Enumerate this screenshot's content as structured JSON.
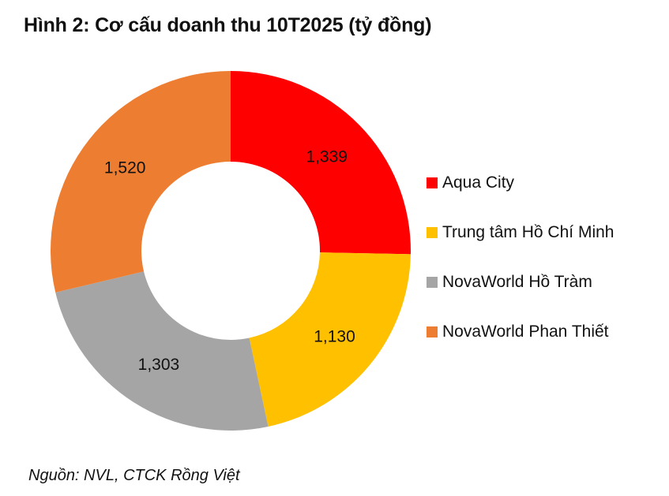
{
  "title": "Hình 2: Cơ cấu doanh thu 10T2025 (tỷ đồng)",
  "source": "Nguồn: NVL, CTCK Rồng Việt",
  "chart_data": {
    "type": "pie",
    "subtype": "donut",
    "title": "Hình 2: Cơ cấu doanh thu 10T2025 (tỷ đồng)",
    "unit": "tỷ đồng",
    "categories": [
      "Aqua City",
      "Trung tâm Hồ Chí Minh",
      "NovaWorld Hồ Tràm",
      "NovaWorld Phan Thiết"
    ],
    "values": [
      1339,
      1130,
      1303,
      1520
    ],
    "value_labels": [
      "1,339",
      "1,130",
      "1,303",
      "1,520"
    ],
    "colors": [
      "#FF0000",
      "#FFC000",
      "#A5A5A5",
      "#ED7D31"
    ],
    "legend_position": "right",
    "start_angle": "12 o'clock, clockwise",
    "source": "Nguồn: NVL, CTCK Rồng Việt"
  },
  "legend": {
    "items": [
      {
        "label": "Aqua City",
        "color": "#FF0000"
      },
      {
        "label": "Trung tâm Hồ Chí Minh",
        "color": "#FFC000"
      },
      {
        "label": "NovaWorld Hồ Tràm",
        "color": "#A5A5A5"
      },
      {
        "label": "NovaWorld Phan Thiết",
        "color": "#ED7D31"
      }
    ]
  }
}
